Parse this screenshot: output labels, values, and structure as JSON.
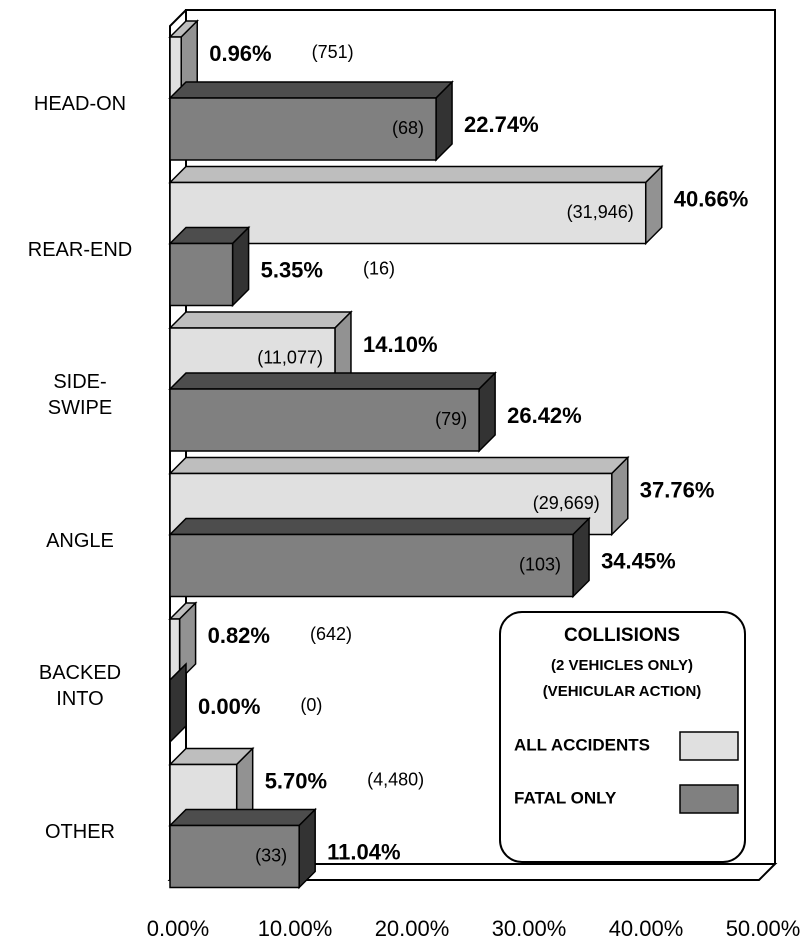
{
  "chart_data": {
    "type": "bar3d-horizontal",
    "categories": [
      "HEAD-ON",
      "REAR-END",
      "SIDE-\nSWIPE",
      "ANGLE",
      "BACKED\nINTO",
      "OTHER"
    ],
    "series": [
      {
        "name": "ALL ACCIDENTS",
        "color": "#e0e0e0",
        "values": [
          0.96,
          40.66,
          14.1,
          37.76,
          0.82,
          5.7
        ],
        "value_labels": [
          "0.96%",
          "40.66%",
          "14.10%",
          "37.76%",
          "0.82%",
          "5.70%"
        ],
        "count_labels": [
          "(751)",
          "(31,946)",
          "(11,077)",
          "(29,669)",
          "(642)",
          "(4,480)"
        ]
      },
      {
        "name": "FATAL ONLY",
        "color": "#808080",
        "values": [
          22.74,
          5.35,
          26.42,
          34.45,
          0,
          11.04
        ],
        "value_labels": [
          "22.74%",
          "5.35%",
          "26.42%",
          "34.45%",
          "0.00%",
          "11.04%"
        ],
        "count_labels": [
          "(68)",
          "(16)",
          "(79)",
          "(103)",
          "(0)",
          "(33)"
        ]
      }
    ],
    "legend_title": [
      "COLLISIONS",
      "(2 VEHICLES ONLY)",
      "(VEHICULAR ACTION)"
    ],
    "xlim": [
      0,
      50
    ],
    "xticks": [
      {
        "value": 0,
        "label": "0.00%"
      },
      {
        "value": 10,
        "label": "10.00%"
      },
      {
        "value": 20,
        "label": "20.00%"
      },
      {
        "value": 30,
        "label": "30.00%"
      },
      {
        "value": 40,
        "label": "40.00%"
      },
      {
        "value": 50,
        "label": "50.00%"
      }
    ],
    "legend": "lower right"
  }
}
